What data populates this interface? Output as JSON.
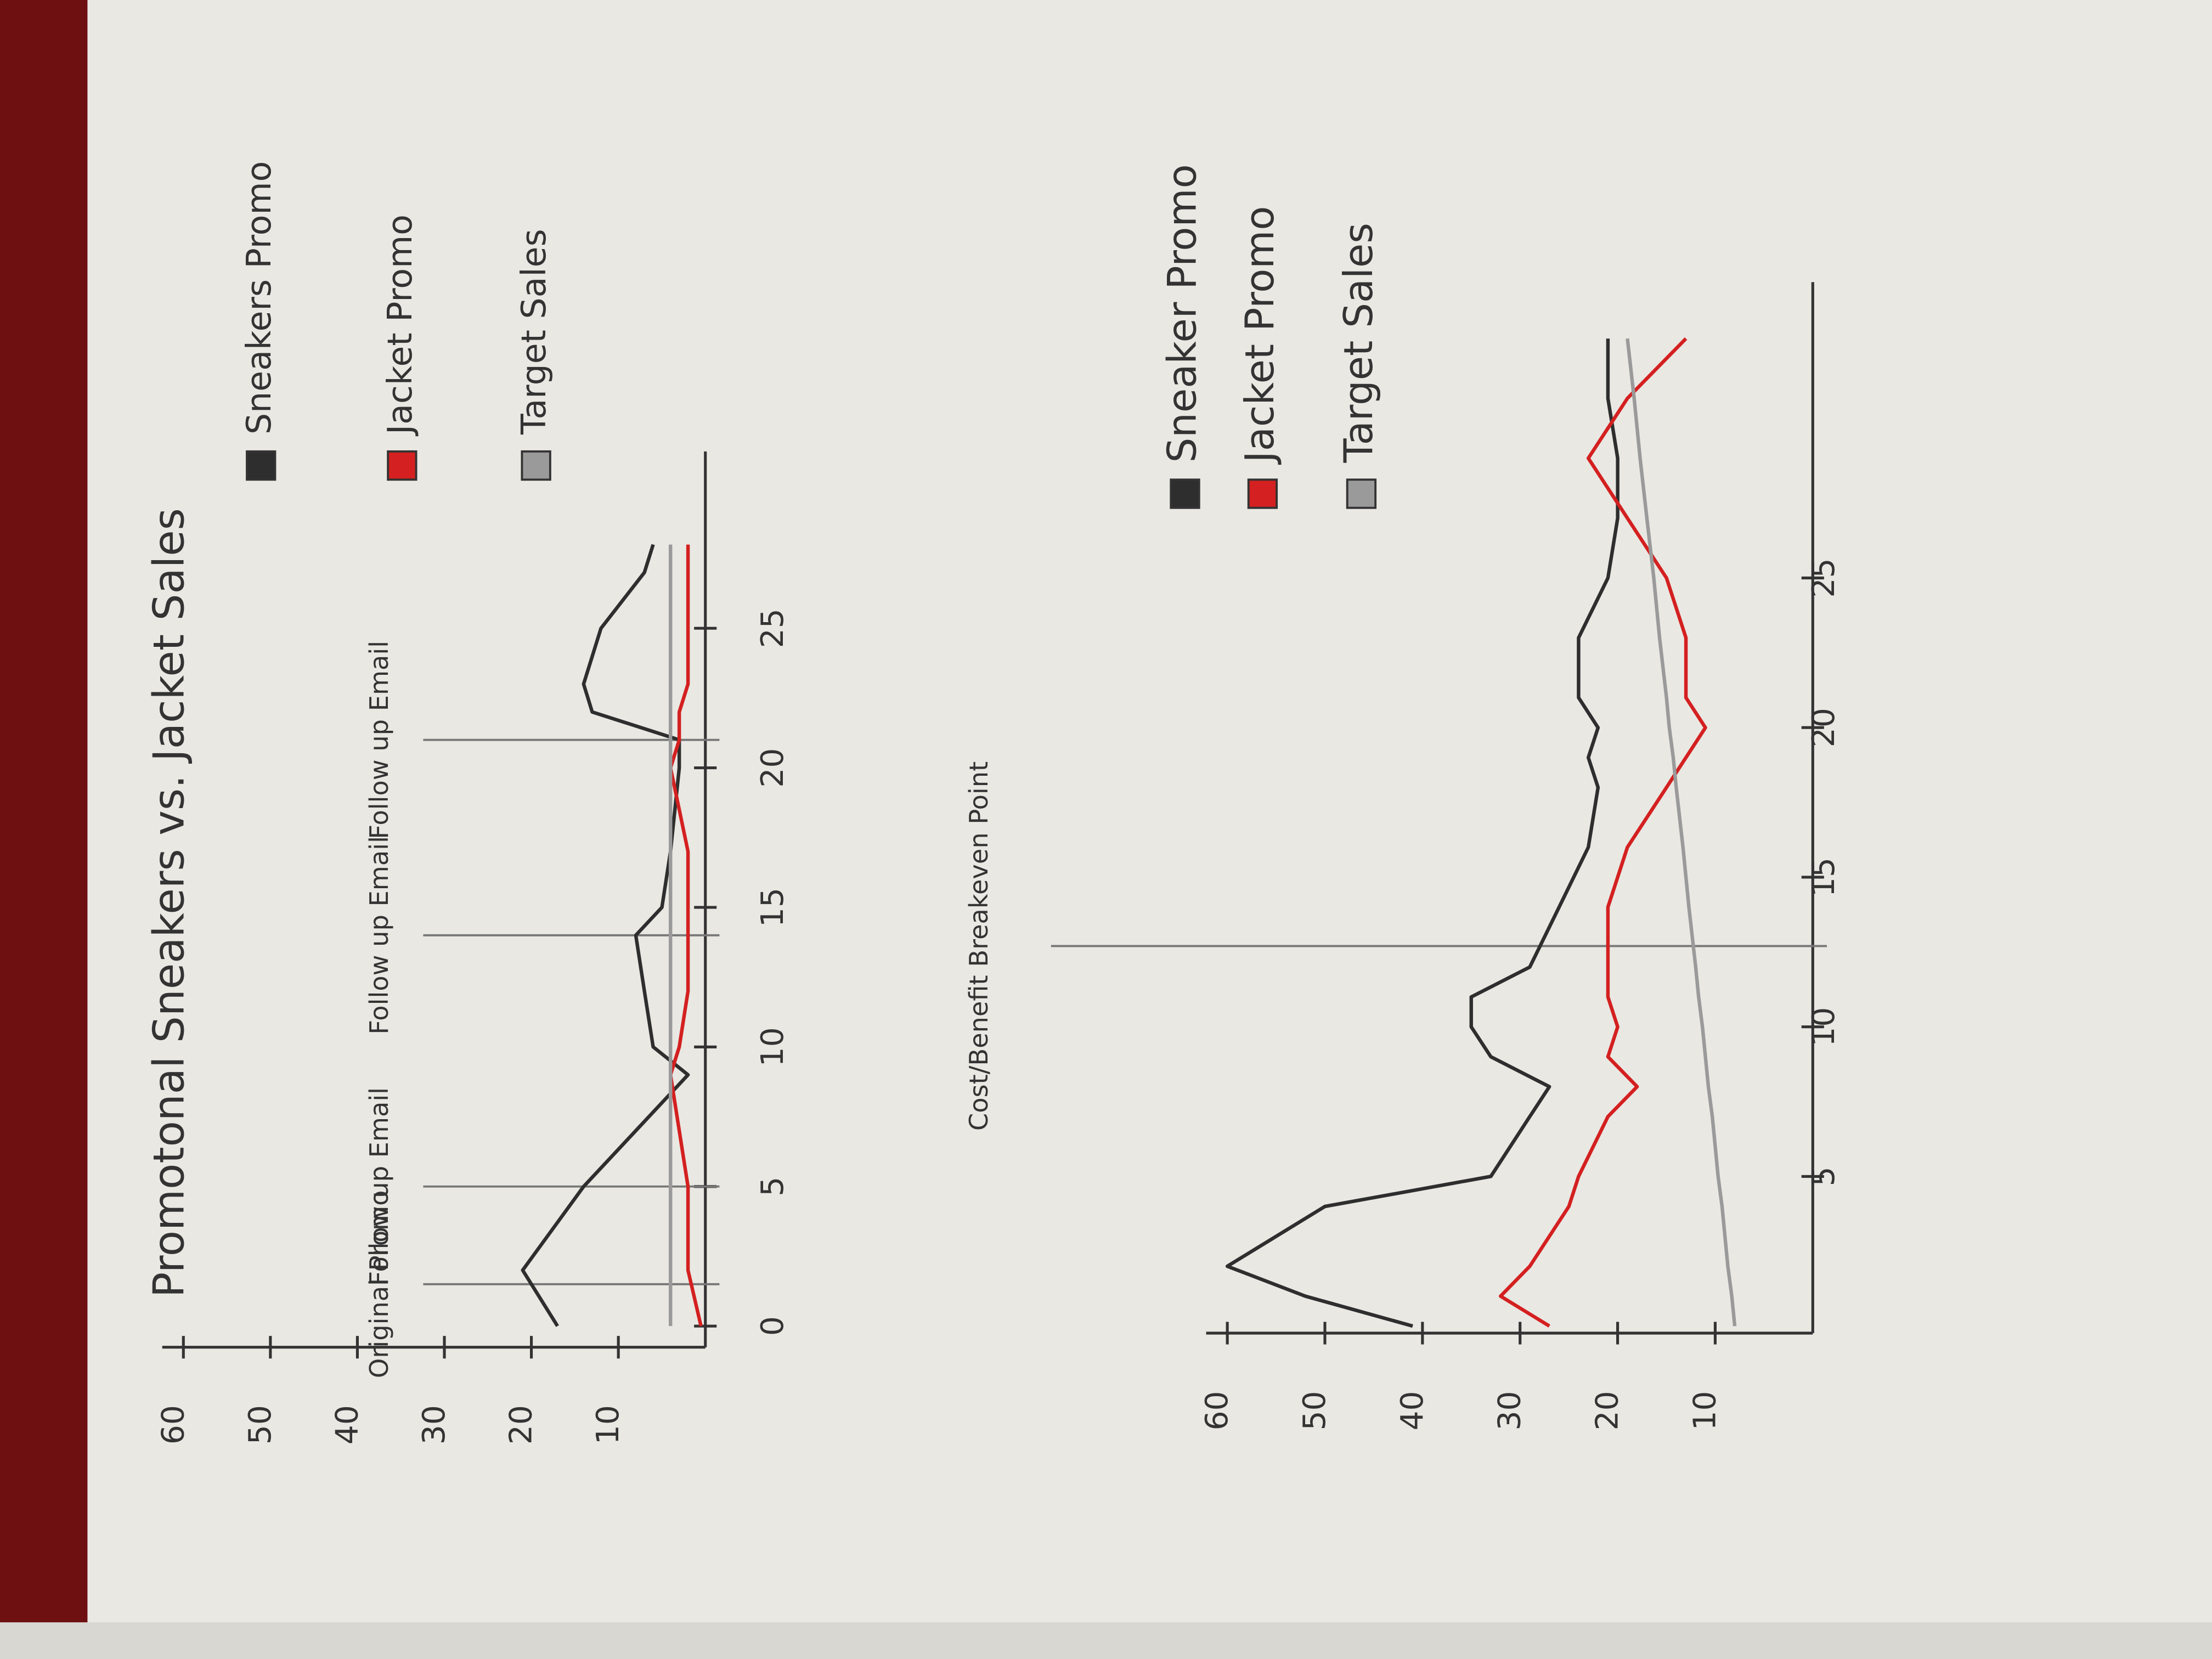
{
  "chart_data": [
    {
      "type": "line",
      "title": "Promotonal Sneakers vs. Jacket Sales",
      "x": [
        0,
        2,
        5,
        7,
        9,
        10,
        12,
        14,
        15,
        17,
        20,
        21,
        22,
        23,
        25,
        27,
        28
      ],
      "series": [
        {
          "name": "Sneakers Promo",
          "color": "#2e2e2e",
          "values": [
            17,
            21,
            14,
            8,
            2,
            6,
            7,
            8,
            5,
            4,
            3,
            3,
            13,
            14,
            12,
            7,
            6
          ]
        },
        {
          "name": "Jacket Promo",
          "color": "#d42020",
          "values": [
            0.5,
            2,
            2,
            3,
            4,
            3,
            2,
            2,
            2,
            2,
            4,
            3,
            3,
            2,
            2,
            2,
            2
          ]
        },
        {
          "name": "Target Sales",
          "color": "#9a9a9a",
          "values": [
            4,
            4,
            4,
            4,
            4,
            4,
            4,
            4,
            4,
            4,
            4,
            4,
            4,
            4,
            4,
            4,
            4
          ]
        }
      ],
      "xlim": [
        0,
        28
      ],
      "xticks": [
        0,
        5,
        10,
        15,
        20,
        25
      ],
      "ylim": [
        0,
        60
      ],
      "yticks": [
        10,
        20,
        30,
        40,
        50,
        60
      ],
      "annotations": [
        {
          "text": "Original Promo",
          "x": 1.5
        },
        {
          "text": "Follow up Email",
          "x": 5
        },
        {
          "text": "Follow up Email",
          "x": 14
        },
        {
          "text": "Follow up Email",
          "x": 21
        }
      ]
    },
    {
      "type": "line",
      "x": [
        0,
        1,
        2,
        4,
        5,
        7,
        8,
        9,
        10,
        11,
        12,
        14,
        16,
        18,
        19,
        20,
        21,
        23,
        25,
        27,
        29,
        31,
        33
      ],
      "series": [
        {
          "name": "Sneaker Promo",
          "color": "#2e2e2e",
          "values": [
            41,
            52,
            60,
            50,
            33,
            29,
            27,
            33,
            35,
            35,
            29,
            26,
            23,
            22,
            23,
            22,
            24,
            24,
            21,
            20,
            20,
            21,
            21
          ]
        },
        {
          "name": "Jacket Promo",
          "color": "#d42020",
          "values": [
            27,
            32,
            29,
            25,
            24,
            21,
            18,
            21,
            20,
            21,
            21,
            21,
            19,
            15,
            13,
            11,
            13,
            13,
            15,
            19,
            23,
            19,
            13
          ]
        },
        {
          "name": "Target Sales",
          "color": "#9a9a9a",
          "values": [
            8,
            8.3,
            8.7,
            9.3,
            9.7,
            10.3,
            10.7,
            11,
            11.3,
            11.7,
            12,
            12.7,
            13.3,
            14,
            14.3,
            14.7,
            15,
            15.7,
            16.3,
            17,
            17.7,
            18.3,
            19
          ]
        }
      ],
      "xlim": [
        0,
        33
      ],
      "xticks": [
        5,
        10,
        15,
        20,
        25
      ],
      "ylim": [
        0,
        60
      ],
      "yticks": [
        10,
        20,
        30,
        40,
        50,
        60
      ],
      "annotations": [
        {
          "text": "Cost/Benefit Breakeven Point",
          "x": 12.7
        }
      ]
    }
  ]
}
